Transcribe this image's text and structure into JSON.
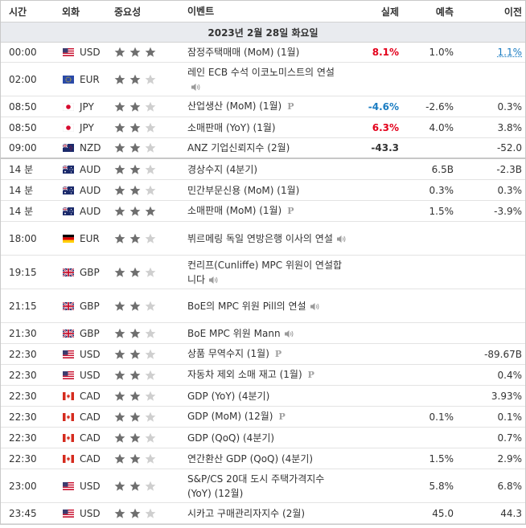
{
  "columns": {
    "time": "시간",
    "currency": "외화",
    "importance": "중요성",
    "event": "이벤트",
    "actual": "실제",
    "forecast": "예측",
    "previous": "이전"
  },
  "date_banner": "2023년 2월 28일 화요일",
  "colors": {
    "star_on": "#6f6f6f",
    "star_off": "#cfcfcf",
    "actual_red": "#e3001b",
    "actual_blue": "#1a7cc2",
    "date_bar_bg": "#e9ebef"
  },
  "rows": [
    {
      "time": "00:00",
      "flag": "us",
      "currency": "USD",
      "stars": 3,
      "event": "잠정주택매매 (MoM) (1월)",
      "icon": "",
      "actual": "8.1%",
      "actual_style": "red",
      "forecast": "1.0%",
      "previous": "1.1%",
      "previous_style": "link"
    },
    {
      "time": "02:00",
      "flag": "eu",
      "currency": "EUR",
      "stars": 2,
      "event": "레인 ECB 수석 이코노미스트의 연설",
      "icon": "speaker",
      "actual": "",
      "actual_style": "",
      "forecast": "",
      "previous": "",
      "previous_style": ""
    },
    {
      "time": "08:50",
      "flag": "jp",
      "currency": "JPY",
      "stars": 2,
      "event": "산업생산 (MoM) (1월)",
      "icon": "p",
      "actual": "-4.6%",
      "actual_style": "blue",
      "forecast": "-2.6%",
      "previous": "0.3%",
      "previous_style": ""
    },
    {
      "time": "08:50",
      "flag": "jp",
      "currency": "JPY",
      "stars": 2,
      "event": "소매판매 (YoY) (1월)",
      "icon": "",
      "actual": "6.3%",
      "actual_style": "red",
      "forecast": "4.0%",
      "previous": "3.8%",
      "previous_style": ""
    },
    {
      "time": "09:00",
      "flag": "nz",
      "currency": "NZD",
      "stars": 2,
      "event": "ANZ 기업신뢰지수 (2월)",
      "icon": "",
      "actual": "-43.3",
      "actual_style": "bold",
      "forecast": "",
      "previous": "-52.0",
      "previous_style": "",
      "sep": true
    },
    {
      "time": "14 분",
      "flag": "au",
      "currency": "AUD",
      "stars": 2,
      "event": "경상수지 (4분기)",
      "icon": "",
      "actual": "",
      "actual_style": "",
      "forecast": "6.5B",
      "previous": "-2.3B",
      "previous_style": ""
    },
    {
      "time": "14 분",
      "flag": "au",
      "currency": "AUD",
      "stars": 2,
      "event": "민간부문신용 (MoM) (1월)",
      "icon": "",
      "actual": "",
      "actual_style": "",
      "forecast": "0.3%",
      "previous": "0.3%",
      "previous_style": ""
    },
    {
      "time": "14 분",
      "flag": "au",
      "currency": "AUD",
      "stars": 3,
      "event": "소매판매 (MoM) (1월)",
      "icon": "p",
      "actual": "",
      "actual_style": "",
      "forecast": "1.5%",
      "previous": "-3.9%",
      "previous_style": ""
    },
    {
      "time": "18:00",
      "flag": "de",
      "currency": "EUR",
      "stars": 2,
      "event": "뷔르메링 독일 연방은행 이사의 연설",
      "icon": "speaker",
      "actual": "",
      "actual_style": "",
      "forecast": "",
      "previous": "",
      "previous_style": ""
    },
    {
      "time": "19:15",
      "flag": "gb",
      "currency": "GBP",
      "stars": 2,
      "event": "컨리프(Cunliffe) MPC 위원이 연설합니다",
      "icon": "speaker",
      "actual": "",
      "actual_style": "",
      "forecast": "",
      "previous": "",
      "previous_style": ""
    },
    {
      "time": "21:15",
      "flag": "gb",
      "currency": "GBP",
      "stars": 2,
      "event": "BoE의 MPC 위원 Pill의 연설",
      "icon": "speaker",
      "actual": "",
      "actual_style": "",
      "forecast": "",
      "previous": "",
      "previous_style": ""
    },
    {
      "time": "21:30",
      "flag": "gb",
      "currency": "GBP",
      "stars": 2,
      "event": "BoE MPC 위원 Mann",
      "icon": "speaker",
      "actual": "",
      "actual_style": "",
      "forecast": "",
      "previous": "",
      "previous_style": ""
    },
    {
      "time": "22:30",
      "flag": "us",
      "currency": "USD",
      "stars": 2,
      "event": "상품 무역수지 (1월)",
      "icon": "p",
      "actual": "",
      "actual_style": "",
      "forecast": "",
      "previous": "-89.67B",
      "previous_style": ""
    },
    {
      "time": "22:30",
      "flag": "us",
      "currency": "USD",
      "stars": 2,
      "event": "자동차 제외 소매 재고 (1월)",
      "icon": "p",
      "actual": "",
      "actual_style": "",
      "forecast": "",
      "previous": "0.4%",
      "previous_style": ""
    },
    {
      "time": "22:30",
      "flag": "ca",
      "currency": "CAD",
      "stars": 2,
      "event": "GDP (YoY) (4분기)",
      "icon": "",
      "actual": "",
      "actual_style": "",
      "forecast": "",
      "previous": "3.93%",
      "previous_style": ""
    },
    {
      "time": "22:30",
      "flag": "ca",
      "currency": "CAD",
      "stars": 2,
      "event": "GDP (MoM) (12월)",
      "icon": "p",
      "actual": "",
      "actual_style": "",
      "forecast": "0.1%",
      "previous": "0.1%",
      "previous_style": ""
    },
    {
      "time": "22:30",
      "flag": "ca",
      "currency": "CAD",
      "stars": 2,
      "event": "GDP (QoQ) (4분기)",
      "icon": "",
      "actual": "",
      "actual_style": "",
      "forecast": "",
      "previous": "0.7%",
      "previous_style": ""
    },
    {
      "time": "22:30",
      "flag": "ca",
      "currency": "CAD",
      "stars": 2,
      "event": "연간환산 GDP (QoQ) (4분기)",
      "icon": "",
      "actual": "",
      "actual_style": "",
      "forecast": "1.5%",
      "previous": "2.9%",
      "previous_style": ""
    },
    {
      "time": "23:00",
      "flag": "us",
      "currency": "USD",
      "stars": 2,
      "event": "S&P/CS 20대 도시 주택가격지수 (YoY) (12월)",
      "icon": "",
      "actual": "",
      "actual_style": "",
      "forecast": "5.8%",
      "previous": "6.8%",
      "previous_style": ""
    },
    {
      "time": "23:45",
      "flag": "us",
      "currency": "USD",
      "stars": 2,
      "event": "시카고 구매관리자지수 (2월)",
      "icon": "",
      "actual": "",
      "actual_style": "",
      "forecast": "45.0",
      "previous": "44.3",
      "previous_style": ""
    }
  ]
}
